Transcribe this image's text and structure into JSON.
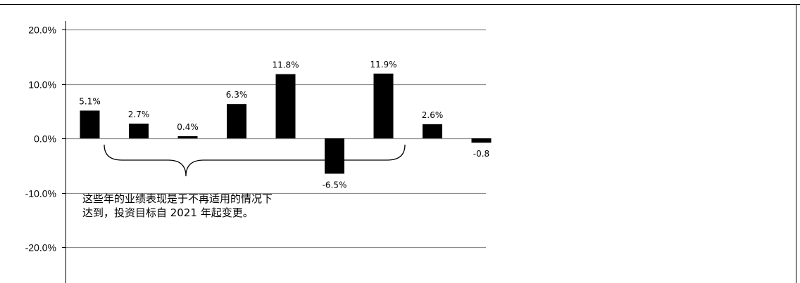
{
  "chart_data": {
    "type": "bar",
    "title": "",
    "xlabel": "",
    "ylabel": "",
    "ylim": [
      -25,
      25
    ],
    "yticks": [
      "20.0%",
      "10.0%",
      "0.0%",
      "-10.0%",
      "-20.0%"
    ],
    "ytick_values": [
      20,
      10,
      0,
      -10,
      -20
    ],
    "categories": [
      "",
      "",
      "",
      "",
      "",
      "",
      "",
      "",
      ""
    ],
    "values": [
      5.1,
      2.7,
      0.4,
      6.3,
      11.8,
      -6.5,
      11.9,
      2.6,
      -0.8
    ],
    "data_labels": [
      "5.1%",
      "2.7%",
      "0.4%",
      "6.3%",
      "11.8%",
      "-6.5%",
      "11.9%",
      "2.6%",
      "-0.8"
    ],
    "bar_color": "#000000",
    "grid": true,
    "grid_color": "#8c8c8c",
    "annotation": {
      "lines": [
        "这些年的业绩表现是于不再适用的情况下",
        "达到，投资目标自 2021 年起变更。"
      ],
      "brace_span": "bars 2–7"
    }
  }
}
